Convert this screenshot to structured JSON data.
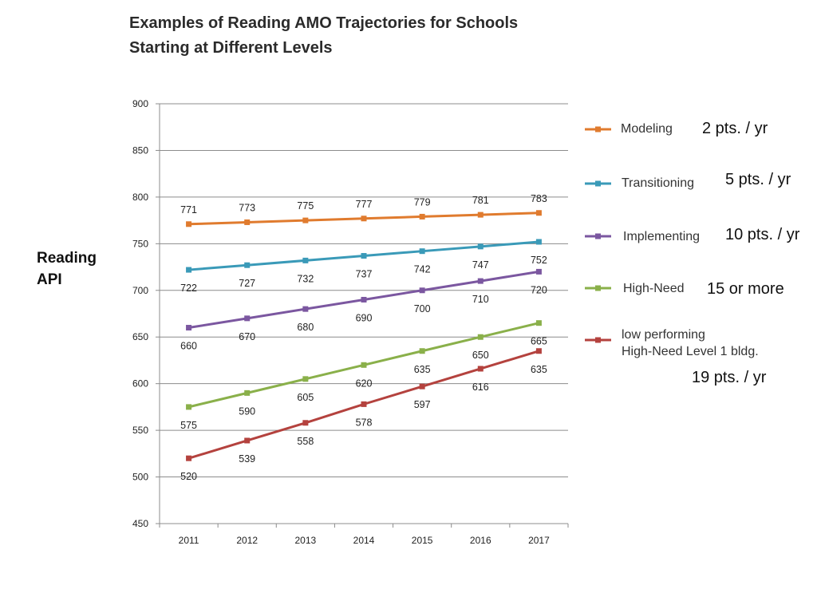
{
  "title_line1": "Examples of Reading AMO Trajectories for Schools",
  "title_line2": "Starting at Different Levels",
  "ylabel_line1": "Reading",
  "ylabel_line2": "API",
  "chart_data": {
    "type": "line",
    "title": "Examples of Reading AMO Trajectories for Schools Starting at Different Levels",
    "xlabel": "",
    "ylabel": "Reading API",
    "categories": [
      "2011",
      "2012",
      "2013",
      "2014",
      "2015",
      "2016",
      "2017"
    ],
    "ylim": [
      450,
      900
    ],
    "yticks": [
      450,
      500,
      550,
      600,
      650,
      700,
      750,
      800,
      850,
      900
    ],
    "grid": true,
    "legend_position": "right",
    "series": [
      {
        "name": "Modeling",
        "color": "#E07B2E",
        "values": [
          771,
          773,
          775,
          777,
          779,
          781,
          783
        ]
      },
      {
        "name": "Transitioning",
        "color": "#3A9AB8",
        "values": [
          722,
          727,
          732,
          737,
          742,
          747,
          752
        ]
      },
      {
        "name": "Implementing",
        "color": "#7B57A0",
        "values": [
          660,
          670,
          680,
          690,
          700,
          710,
          720
        ]
      },
      {
        "name": "High-Need",
        "color": "#8AB04A",
        "values": [
          575,
          590,
          605,
          620,
          635,
          650,
          665
        ]
      },
      {
        "name": "low performing High-Need Level 1 bldg.",
        "color": "#B4423E",
        "values": [
          520,
          539,
          558,
          578,
          597,
          616,
          635
        ]
      }
    ]
  },
  "legend": [
    {
      "label_line1": "Modeling",
      "label_line2": "",
      "note": "2 pts. / yr",
      "color": "#E07B2E"
    },
    {
      "label_line1": "Transitioning",
      "label_line2": "",
      "note": "5 pts. / yr",
      "color": "#3A9AB8"
    },
    {
      "label_line1": "Implementing",
      "label_line2": "",
      "note": "10 pts. / yr",
      "color": "#7B57A0"
    },
    {
      "label_line1": "High-Need",
      "label_line2": "",
      "note": "15 or more",
      "color": "#8AB04A"
    },
    {
      "label_line1": "low performing",
      "label_line2": "High-Need Level 1 bldg.",
      "note": "19 pts. / yr",
      "color": "#B4423E"
    }
  ]
}
